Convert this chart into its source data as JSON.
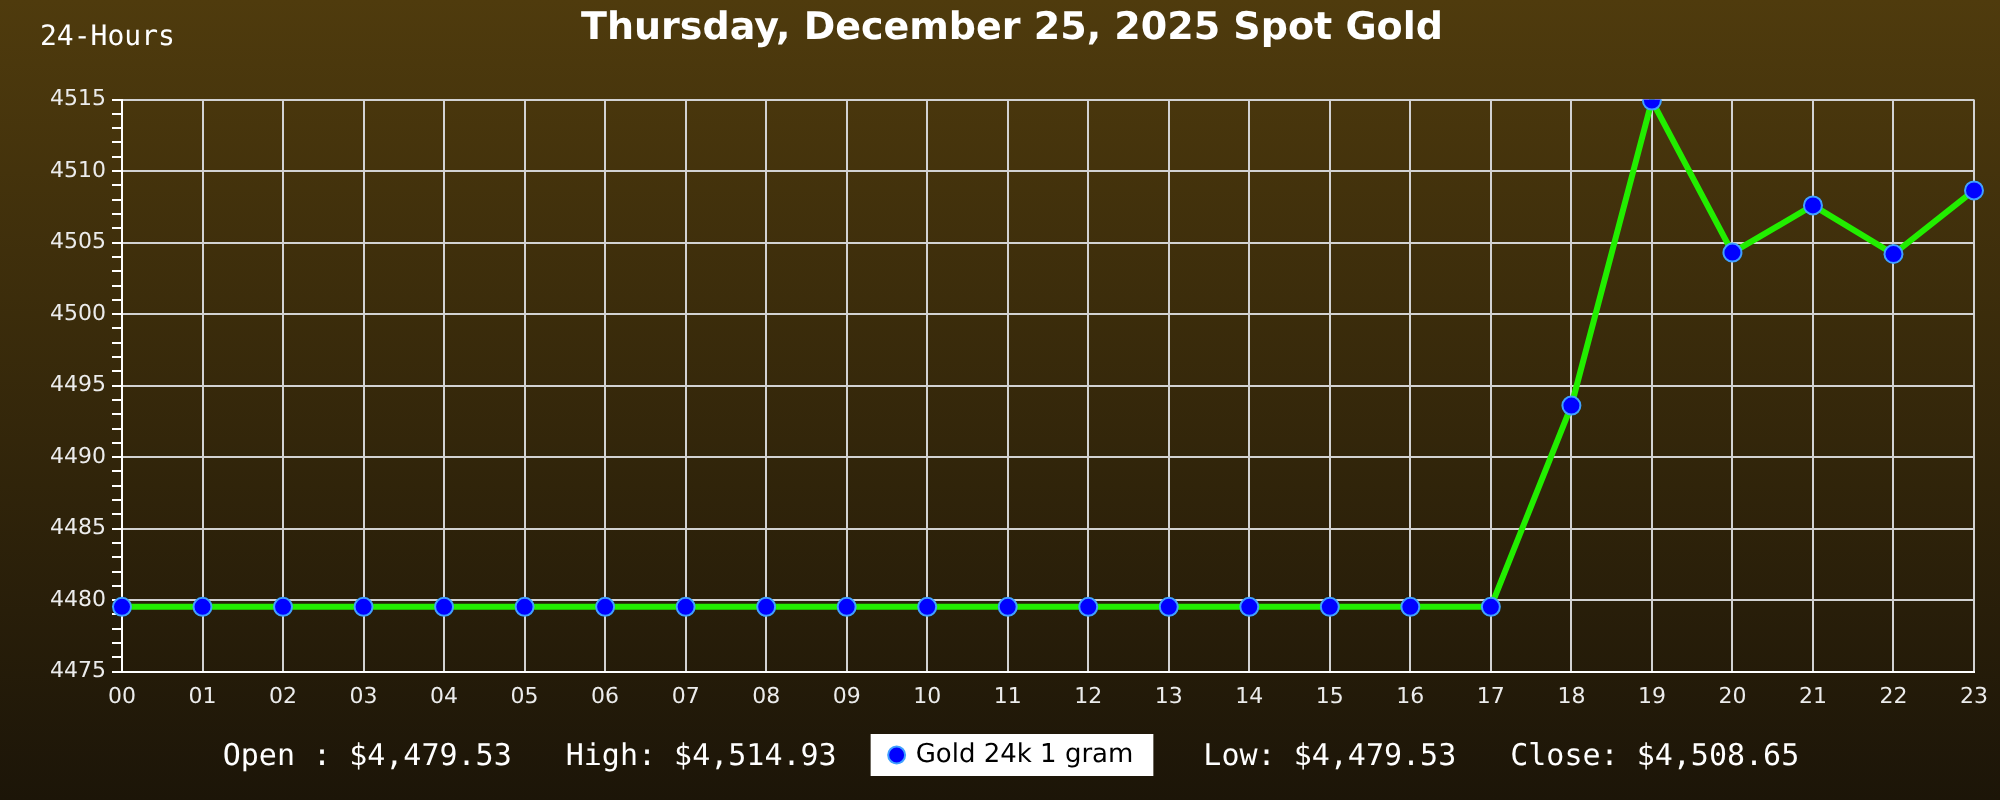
{
  "chart_data": {
    "type": "line",
    "title": "Thursday, December 25, 2025 Spot Gold",
    "subtitle": "24-Hours",
    "annotations": [
      "Open : $4,479.53",
      "High: $4,514.93",
      "Low: $4,479.53",
      "Close: $4,508.65"
    ],
    "categories": [
      "00",
      "01",
      "02",
      "03",
      "04",
      "05",
      "06",
      "07",
      "08",
      "09",
      "10",
      "11",
      "12",
      "13",
      "14",
      "15",
      "16",
      "17",
      "18",
      "19",
      "20",
      "21",
      "22",
      "23"
    ],
    "series": [
      {
        "name": "Gold 24k 1 gram",
        "color": "#22ee00",
        "colors": [
          "#0000ff",
          "#0000ff",
          "#0000ff",
          "#0000ff",
          "#0000ff",
          "#0000ff",
          "#0000ff",
          "#0000ff",
          "#0000ff",
          "#0000ff",
          "#0000ff",
          "#0000ff",
          "#0000ff",
          "#0000ff",
          "#0000ff",
          "#0000ff",
          "#0000ff",
          "#0000ff",
          "#0000ff",
          "#0000ff",
          "#0000ff",
          "#0000ff",
          "#0000ff",
          "#0000ff"
        ],
        "values": [
          4479.53,
          4479.53,
          4479.53,
          4479.53,
          4479.53,
          4479.53,
          4479.53,
          4479.53,
          4479.53,
          4479.53,
          4479.53,
          4479.53,
          4479.53,
          4479.53,
          4479.53,
          4479.53,
          4479.53,
          4479.53,
          4493.6,
          4514.93,
          4504.3,
          4507.6,
          4504.2,
          4508.65
        ]
      }
    ],
    "ylim": [
      4475,
      4515
    ],
    "yticks": [
      4475,
      {
        "value": 4476,
        "label": null
      },
      {
        "value": 4477,
        "label": null
      },
      {
        "value": 4478,
        "label": null
      },
      {
        "value": 4479,
        "label": null
      },
      4480,
      {
        "value": 4481,
        "label": null
      },
      {
        "value": 4482,
        "label": null
      },
      {
        "value": 4483,
        "label": null
      },
      {
        "value": 4484,
        "label": null
      },
      4485,
      {
        "value": 4486,
        "label": null
      },
      {
        "value": 4487,
        "label": null
      },
      {
        "value": 4488,
        "label": null
      },
      {
        "value": 4489,
        "label": null
      },
      4490,
      {
        "value": 4491,
        "label": null
      },
      {
        "value": 4492,
        "label": null
      },
      {
        "value": 4493,
        "label": null
      },
      {
        "value": 4494,
        "label": null
      },
      4495,
      {
        "value": 4496,
        "label": null
      },
      {
        "value": 4497,
        "label": null
      },
      {
        "value": 4498,
        "label": null
      },
      {
        "value": 4499,
        "label": null
      },
      4500,
      {
        "value": 4501,
        "label": null
      },
      {
        "value": 4502,
        "label": null
      },
      {
        "value": 4503,
        "label": null
      },
      {
        "value": 4504,
        "label": null
      },
      4505,
      {
        "value": 4506,
        "label": null
      },
      {
        "value": 4507,
        "label": null
      },
      {
        "value": 4508,
        "label": null
      },
      {
        "value": 4509,
        "label": null
      },
      4510,
      {
        "value": 4511,
        "label": null
      },
      {
        "value": 4512,
        "label": null
      },
      {
        "value": 4513,
        "label": null
      },
      {
        "value": 4514,
        "label": null
      },
      4515
    ],
    "grid": true,
    "legend": "bottom",
    "marker": "circle",
    "line_style": "solid"
  }
}
